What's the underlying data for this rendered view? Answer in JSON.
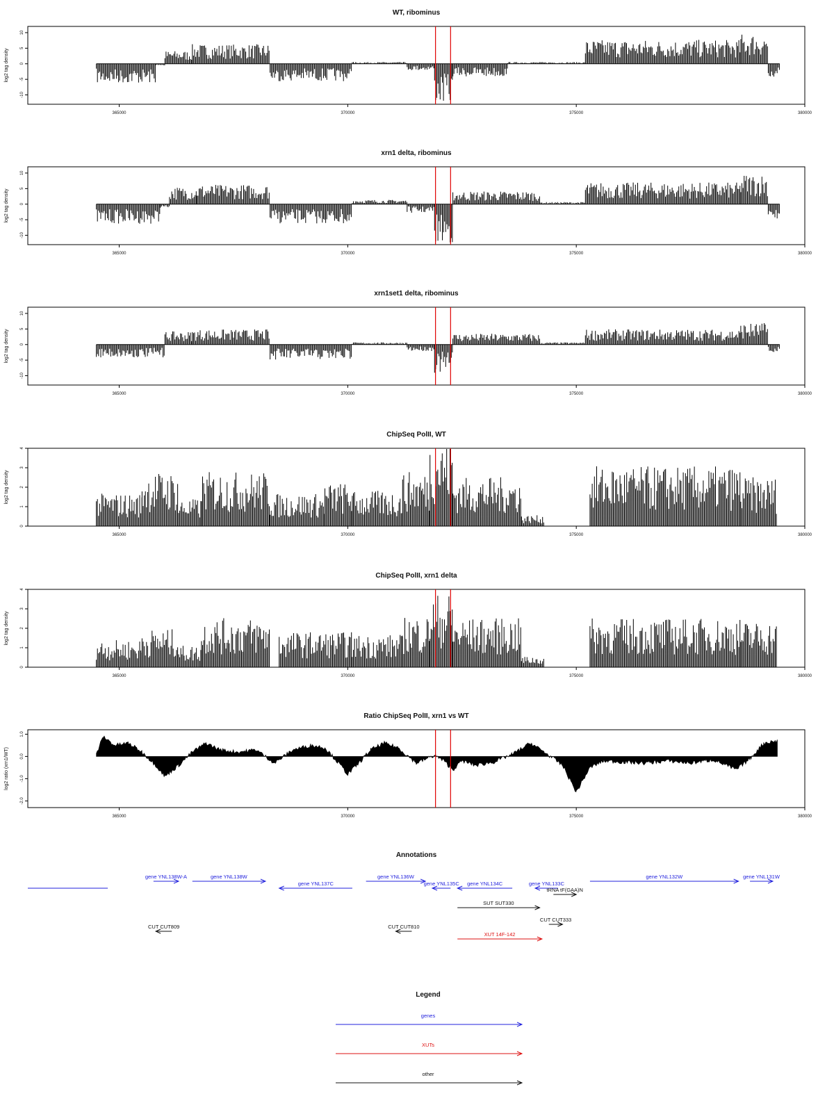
{
  "colors": {
    "gene": "#2222dd",
    "xut": "#dd1111",
    "other": "#111111",
    "marker": "#e00000",
    "trace": "#000000"
  },
  "chart_data": [
    {
      "type": "bar",
      "title": "WT, ribominus",
      "ylabel": "log2 tag density",
      "xlim": [
        363000,
        380000
      ],
      "ylim": [
        -13,
        12
      ],
      "yticks": [
        10,
        5,
        0,
        -5,
        -10
      ],
      "xticks": [
        "365000",
        "370000",
        "375000",
        "380000"
      ],
      "markers": [
        371920,
        372250
      ],
      "baseline": 0,
      "segments": [
        {
          "x": [
            364500,
            365800
          ],
          "level": -4.5
        },
        {
          "x": [
            365800,
            366000
          ],
          "level": -0.5
        },
        {
          "x": [
            366000,
            366600
          ],
          "level": 3
        },
        {
          "x": [
            366600,
            368300
          ],
          "level": 4.5
        },
        {
          "x": [
            368300,
            370100
          ],
          "level": -4
        },
        {
          "x": [
            370100,
            371300
          ],
          "level": 0.4
        },
        {
          "x": [
            371300,
            371900
          ],
          "level": -1.5
        },
        {
          "x": [
            371900,
            372300
          ],
          "level": -9
        },
        {
          "x": [
            372300,
            373500
          ],
          "level": -3
        },
        {
          "x": [
            373500,
            375200
          ],
          "level": 0.4
        },
        {
          "x": [
            375200,
            378600
          ],
          "level": 5.5
        },
        {
          "x": [
            378600,
            379200
          ],
          "level": 7
        },
        {
          "x": [
            379200,
            379450
          ],
          "level": -3
        }
      ]
    },
    {
      "type": "bar",
      "title": "xrn1 delta, ribominus",
      "ylabel": "log2 tag density",
      "xlim": [
        363000,
        380000
      ],
      "ylim": [
        -13,
        12
      ],
      "yticks": [
        10,
        5,
        0,
        -5,
        -10
      ],
      "xticks": [
        "365000",
        "370000",
        "375000",
        "380000"
      ],
      "markers": [
        371920,
        372250
      ],
      "baseline": 0,
      "segments": [
        {
          "x": [
            364500,
            365900
          ],
          "level": -4.5
        },
        {
          "x": [
            365900,
            366100
          ],
          "level": -0.8
        },
        {
          "x": [
            366100,
            366700
          ],
          "level": 4
        },
        {
          "x": [
            366700,
            368300
          ],
          "level": 4.5
        },
        {
          "x": [
            368300,
            370100
          ],
          "level": -4.5
        },
        {
          "x": [
            370100,
            371300
          ],
          "level": 1
        },
        {
          "x": [
            371300,
            371900
          ],
          "level": -2
        },
        {
          "x": [
            371900,
            372300
          ],
          "level": -9
        },
        {
          "x": [
            372300,
            374200
          ],
          "level": 3
        },
        {
          "x": [
            374200,
            375200
          ],
          "level": 0.5
        },
        {
          "x": [
            375200,
            378600
          ],
          "level": 5
        },
        {
          "x": [
            378600,
            379200
          ],
          "level": 7
        },
        {
          "x": [
            379200,
            379450
          ],
          "level": -3.5
        }
      ]
    },
    {
      "type": "bar",
      "title": "xrn1set1 delta, ribominus",
      "ylabel": "log2 tag density",
      "xlim": [
        363000,
        380000
      ],
      "ylim": [
        -13,
        12
      ],
      "yticks": [
        10,
        5,
        0,
        -5,
        -10
      ],
      "xticks": [
        "365000",
        "370000",
        "375000",
        "380000"
      ],
      "markers": [
        371920,
        372250
      ],
      "baseline": 0,
      "segments": [
        {
          "x": [
            364500,
            366000
          ],
          "level": -3
        },
        {
          "x": [
            366000,
            366600
          ],
          "level": 3
        },
        {
          "x": [
            366600,
            368300
          ],
          "level": 3.5
        },
        {
          "x": [
            368300,
            370100
          ],
          "level": -3.5
        },
        {
          "x": [
            370100,
            371300
          ],
          "level": 0.5
        },
        {
          "x": [
            371300,
            371900
          ],
          "level": -1.5
        },
        {
          "x": [
            371900,
            372300
          ],
          "level": -6.5
        },
        {
          "x": [
            372300,
            374200
          ],
          "level": 2.5
        },
        {
          "x": [
            374200,
            375200
          ],
          "level": 0.5
        },
        {
          "x": [
            375200,
            378600
          ],
          "level": 3.5
        },
        {
          "x": [
            378600,
            379200
          ],
          "level": 5
        },
        {
          "x": [
            379200,
            379450
          ],
          "level": -2
        }
      ]
    },
    {
      "type": "bar",
      "title": "ChipSeq PolII, WT",
      "ylabel": "log2 tag density",
      "xlim": [
        363000,
        380000
      ],
      "ylim": [
        0,
        4
      ],
      "yticks": [
        0,
        1,
        2,
        3,
        4
      ],
      "xticks": [
        "365000",
        "370000",
        "375000",
        "380000"
      ],
      "markers": [
        371920,
        372250
      ],
      "baseline": 0,
      "segments": [
        {
          "x": [
            364500,
            365500
          ],
          "level": 1.2
        },
        {
          "x": [
            365500,
            366300
          ],
          "level": 2
        },
        {
          "x": [
            366300,
            366800
          ],
          "level": 1
        },
        {
          "x": [
            366800,
            368300
          ],
          "level": 2
        },
        {
          "x": [
            368300,
            369500
          ],
          "level": 1.2
        },
        {
          "x": [
            369500,
            370100
          ],
          "level": 1.6
        },
        {
          "x": [
            370100,
            371200
          ],
          "level": 1.3
        },
        {
          "x": [
            371200,
            371800
          ],
          "level": 2
        },
        {
          "x": [
            371800,
            372300
          ],
          "level": 3.2
        },
        {
          "x": [
            372300,
            373800
          ],
          "level": 1.8
        },
        {
          "x": [
            373800,
            374300
          ],
          "level": 0.4
        },
        {
          "x": [
            375300,
            377000
          ],
          "level": 2.2
        },
        {
          "x": [
            377000,
            378600
          ],
          "level": 2.2
        },
        {
          "x": [
            378600,
            379400
          ],
          "level": 1.8
        }
      ]
    },
    {
      "type": "bar",
      "title": "ChipSeq PolII, xrn1 delta",
      "ylabel": "log2 tag density",
      "xlim": [
        363000,
        380000
      ],
      "ylim": [
        0,
        4
      ],
      "yticks": [
        0,
        1,
        2,
        3,
        4
      ],
      "xticks": [
        "365000",
        "370000",
        "375000",
        "380000"
      ],
      "markers": [
        371920,
        372250
      ],
      "baseline": 0,
      "segments": [
        {
          "x": [
            364500,
            365500
          ],
          "level": 1
        },
        {
          "x": [
            365500,
            366300
          ],
          "level": 1.4
        },
        {
          "x": [
            366300,
            366800
          ],
          "level": 0.8
        },
        {
          "x": [
            366800,
            368300
          ],
          "level": 1.8
        },
        {
          "x": [
            368500,
            370100
          ],
          "level": 1.3
        },
        {
          "x": [
            370100,
            371200
          ],
          "level": 1.2
        },
        {
          "x": [
            371200,
            371800
          ],
          "level": 1.9
        },
        {
          "x": [
            371800,
            372300
          ],
          "level": 2.7
        },
        {
          "x": [
            372300,
            373800
          ],
          "level": 1.8
        },
        {
          "x": [
            373800,
            374300
          ],
          "level": 0.4
        },
        {
          "x": [
            375300,
            377000
          ],
          "level": 1.8
        },
        {
          "x": [
            377000,
            378600
          ],
          "level": 1.8
        },
        {
          "x": [
            378600,
            379400
          ],
          "level": 1.7
        }
      ]
    },
    {
      "type": "area",
      "title": "Ratio ChipSeq PolII, xrn1 vs WT",
      "ylabel": "log2 ratio (xrn1/WT)",
      "xlim": [
        363000,
        380000
      ],
      "ylim": [
        -2.3,
        1.2
      ],
      "yticks": [
        1.0,
        0.0,
        -1.0,
        -2.0
      ],
      "xticks": [
        "365000",
        "370000",
        "375000",
        "380000"
      ],
      "markers": [
        371920,
        372250
      ],
      "baseline": 0,
      "x": [
        364500,
        364650,
        364900,
        365200,
        365500,
        365800,
        366000,
        366300,
        366600,
        366900,
        367200,
        367600,
        368000,
        368400,
        368800,
        369200,
        369500,
        369800,
        370000,
        370200,
        370500,
        370800,
        371100,
        371500,
        371900,
        372100,
        372300,
        372500,
        372800,
        373200,
        373600,
        374000,
        374300,
        374700,
        375000,
        375300,
        375600,
        376000,
        376500,
        377000,
        377500,
        378000,
        378500,
        378800,
        379100,
        379400
      ],
      "y": [
        0.1,
        0.9,
        0.5,
        0.6,
        0.2,
        -0.4,
        -0.9,
        -0.4,
        0.2,
        0.6,
        0.3,
        0.2,
        0.3,
        -0.3,
        0.3,
        0.5,
        0.4,
        -0.3,
        -0.8,
        -0.4,
        0.3,
        0.6,
        0.4,
        -0.3,
        0.05,
        -0.2,
        -0.6,
        -0.2,
        -0.4,
        -0.25,
        0.1,
        0.6,
        0.2,
        -0.4,
        -1.6,
        -0.5,
        -0.2,
        -0.25,
        -0.3,
        -0.2,
        -0.3,
        -0.15,
        -0.6,
        -0.1,
        0.6,
        0.7
      ]
    }
  ],
  "annotations": {
    "title": "Annotations",
    "xlim": [
      363000,
      380000
    ],
    "features": [
      {
        "label": "",
        "kind": "gene",
        "x1": 363000,
        "x2": 364750,
        "dir": "none",
        "row": 1
      },
      {
        "label": "gene YNL138W-A",
        "kind": "gene",
        "x1": 365750,
        "x2": 366300,
        "dir": "right",
        "row": 0
      },
      {
        "label": "gene YNL138W",
        "kind": "gene",
        "x1": 366600,
        "x2": 368200,
        "dir": "right",
        "row": 0
      },
      {
        "label": "gene YNL137C",
        "kind": "gene",
        "x1": 368500,
        "x2": 370100,
        "dir": "left",
        "row": 1
      },
      {
        "label": "gene YNL136W",
        "kind": "gene",
        "x1": 370400,
        "x2": 371700,
        "dir": "right",
        "row": 0
      },
      {
        "label": "gene YNL135C",
        "kind": "gene",
        "x1": 371850,
        "x2": 372250,
        "dir": "left",
        "row": 1
      },
      {
        "label": "gene YNL134C",
        "kind": "gene",
        "x1": 372400,
        "x2": 373600,
        "dir": "left",
        "row": 1
      },
      {
        "label": "gene YNL133C",
        "kind": "gene",
        "x1": 374100,
        "x2": 374600,
        "dir": "left",
        "row": 1
      },
      {
        "label": "tRNA tF(GAA)N",
        "kind": "other",
        "x1": 374500,
        "x2": 375000,
        "dir": "right",
        "row": 2
      },
      {
        "label": "gene YNL132W",
        "kind": "gene",
        "x1": 375300,
        "x2": 378550,
        "dir": "right",
        "row": 0
      },
      {
        "label": "gene YNL131W",
        "kind": "gene",
        "x1": 378800,
        "x2": 379300,
        "dir": "right",
        "row": 0
      },
      {
        "label": "SUT SUT330",
        "kind": "other",
        "x1": 372400,
        "x2": 374200,
        "dir": "right",
        "row": 3
      },
      {
        "label": "CUT CUT333",
        "kind": "other",
        "x1": 374400,
        "x2": 374700,
        "dir": "right",
        "row": 4
      },
      {
        "label": "CUT CUT809",
        "kind": "other",
        "x1": 365800,
        "x2": 366150,
        "dir": "left",
        "row": 5
      },
      {
        "label": "CUT CUT810",
        "kind": "other",
        "x1": 371050,
        "x2": 371400,
        "dir": "left",
        "row": 5
      },
      {
        "label": "XUT 14F-142",
        "kind": "xut",
        "x1": 372400,
        "x2": 374250,
        "dir": "right",
        "row": 6
      }
    ]
  },
  "legend": {
    "title": "Legend",
    "items": [
      {
        "label": "genes",
        "kind": "gene"
      },
      {
        "label": "XUTs",
        "kind": "xut"
      },
      {
        "label": "other",
        "kind": "other"
      }
    ]
  }
}
